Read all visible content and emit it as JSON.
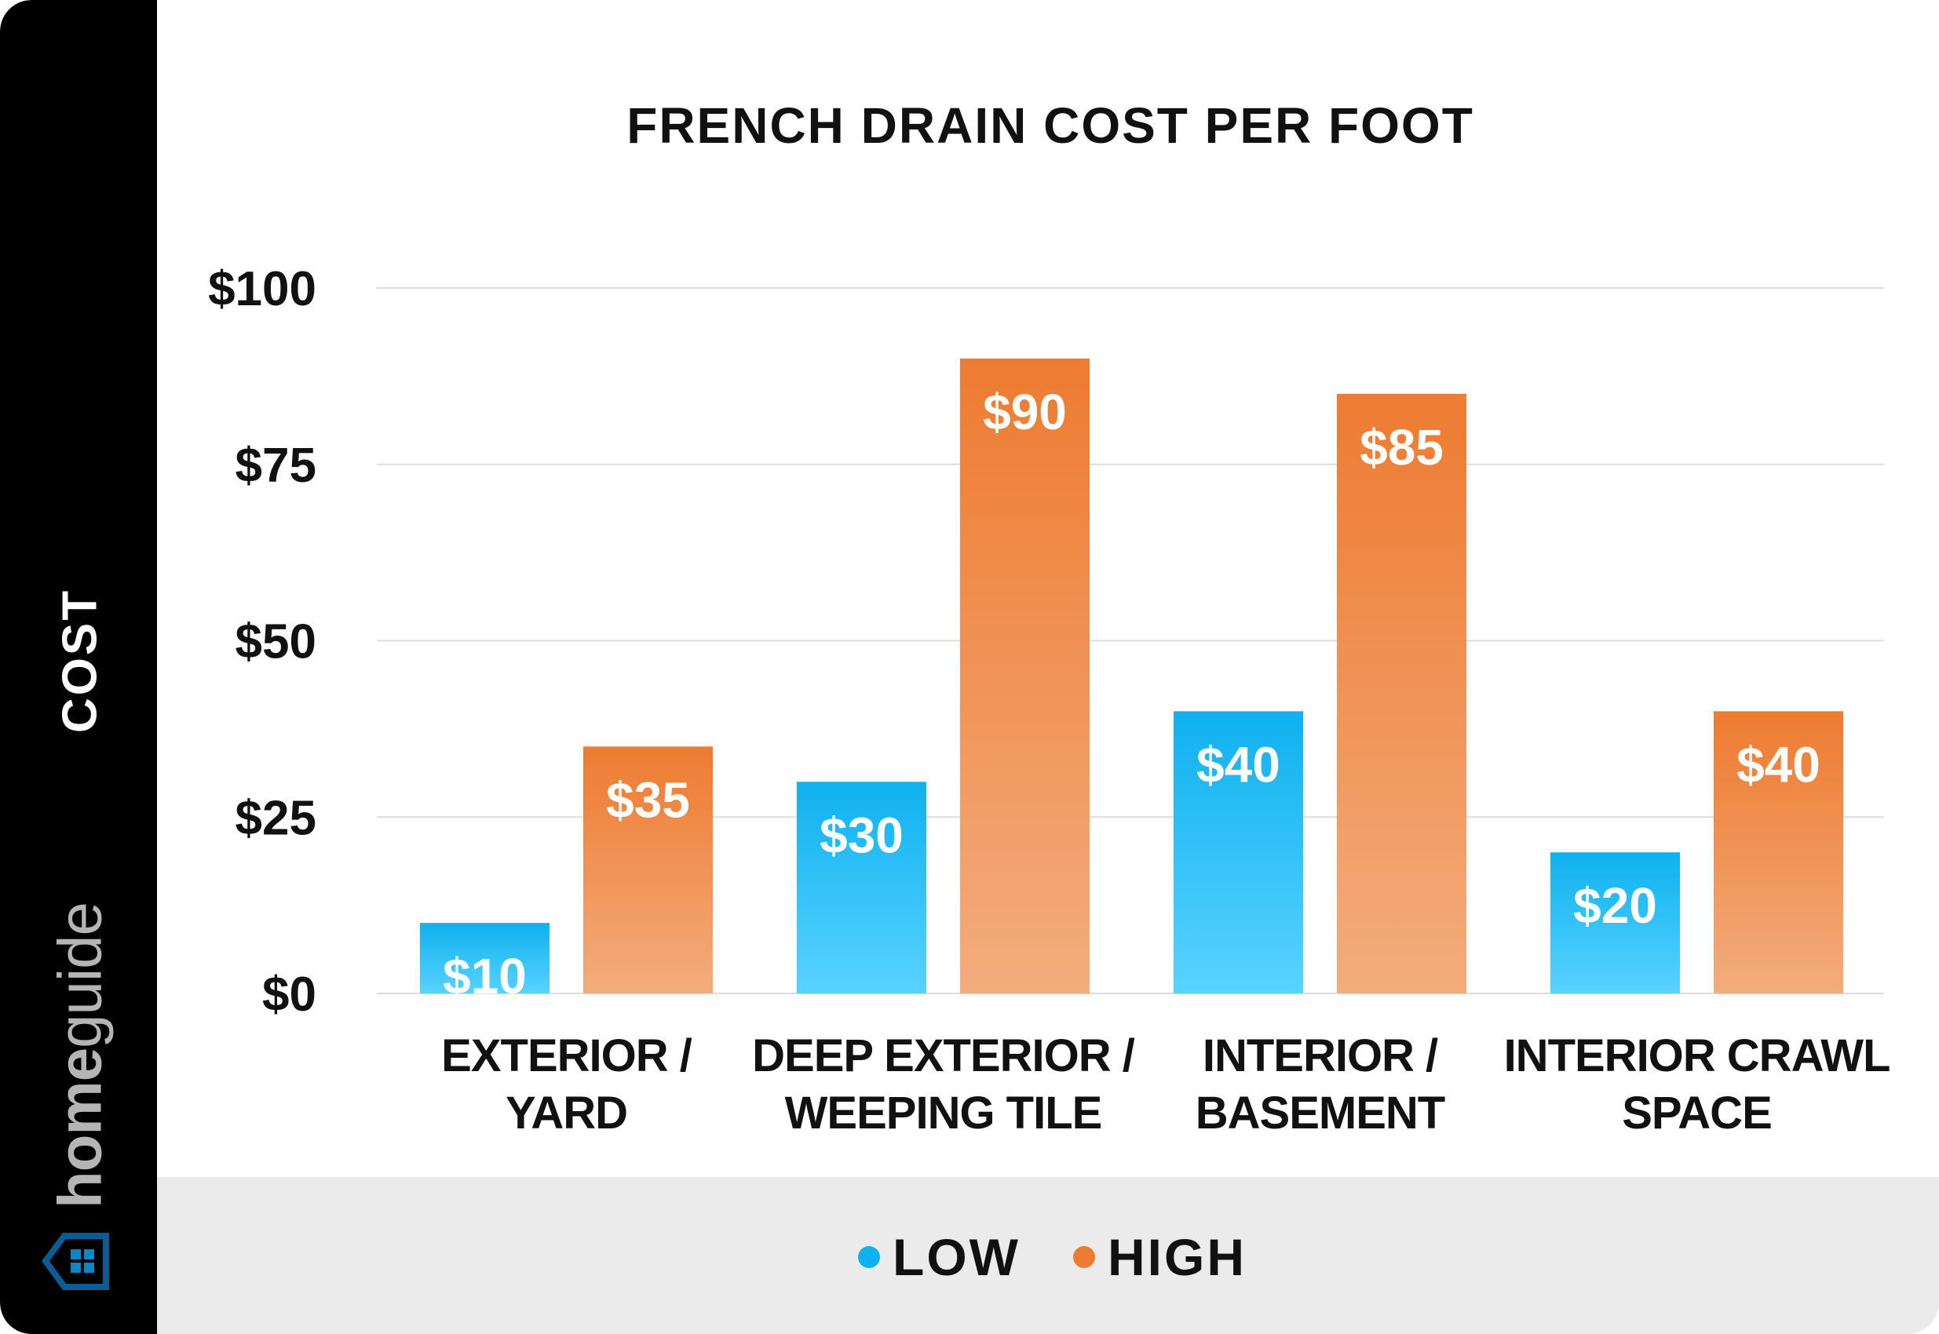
{
  "brand": {
    "prefix": "home",
    "suffix": "guide"
  },
  "chart_data": {
    "type": "bar",
    "title": "FRENCH DRAIN COST PER FOOT",
    "ylabel": "COST",
    "xlabel": "",
    "categories": [
      [
        "EXTERIOR /",
        "YARD"
      ],
      [
        "DEEP EXTERIOR /",
        "WEEPING TILE"
      ],
      [
        "INTERIOR /",
        "BASEMENT"
      ],
      [
        "INTERIOR CRAWL",
        "SPACE"
      ]
    ],
    "series": [
      {
        "name": "LOW",
        "values": [
          10,
          30,
          40,
          20
        ],
        "labels": [
          "$10",
          "$30",
          "$40",
          "$20"
        ],
        "color": "#0fb1ef",
        "color_light": "#58d3ff"
      },
      {
        "name": "HIGH",
        "values": [
          35,
          90,
          85,
          40
        ],
        "labels": [
          "$35",
          "$90",
          "$85",
          "$40"
        ],
        "color": "#ee7b31",
        "color_light": "#f3ac7d"
      }
    ],
    "ylim": [
      0,
      100
    ],
    "yticks": [
      0,
      25,
      50,
      75,
      100
    ],
    "ytick_labels": [
      "$0",
      "$25",
      "$50",
      "$75",
      "$100"
    ],
    "grid": true,
    "legend_placement": "bottom"
  }
}
